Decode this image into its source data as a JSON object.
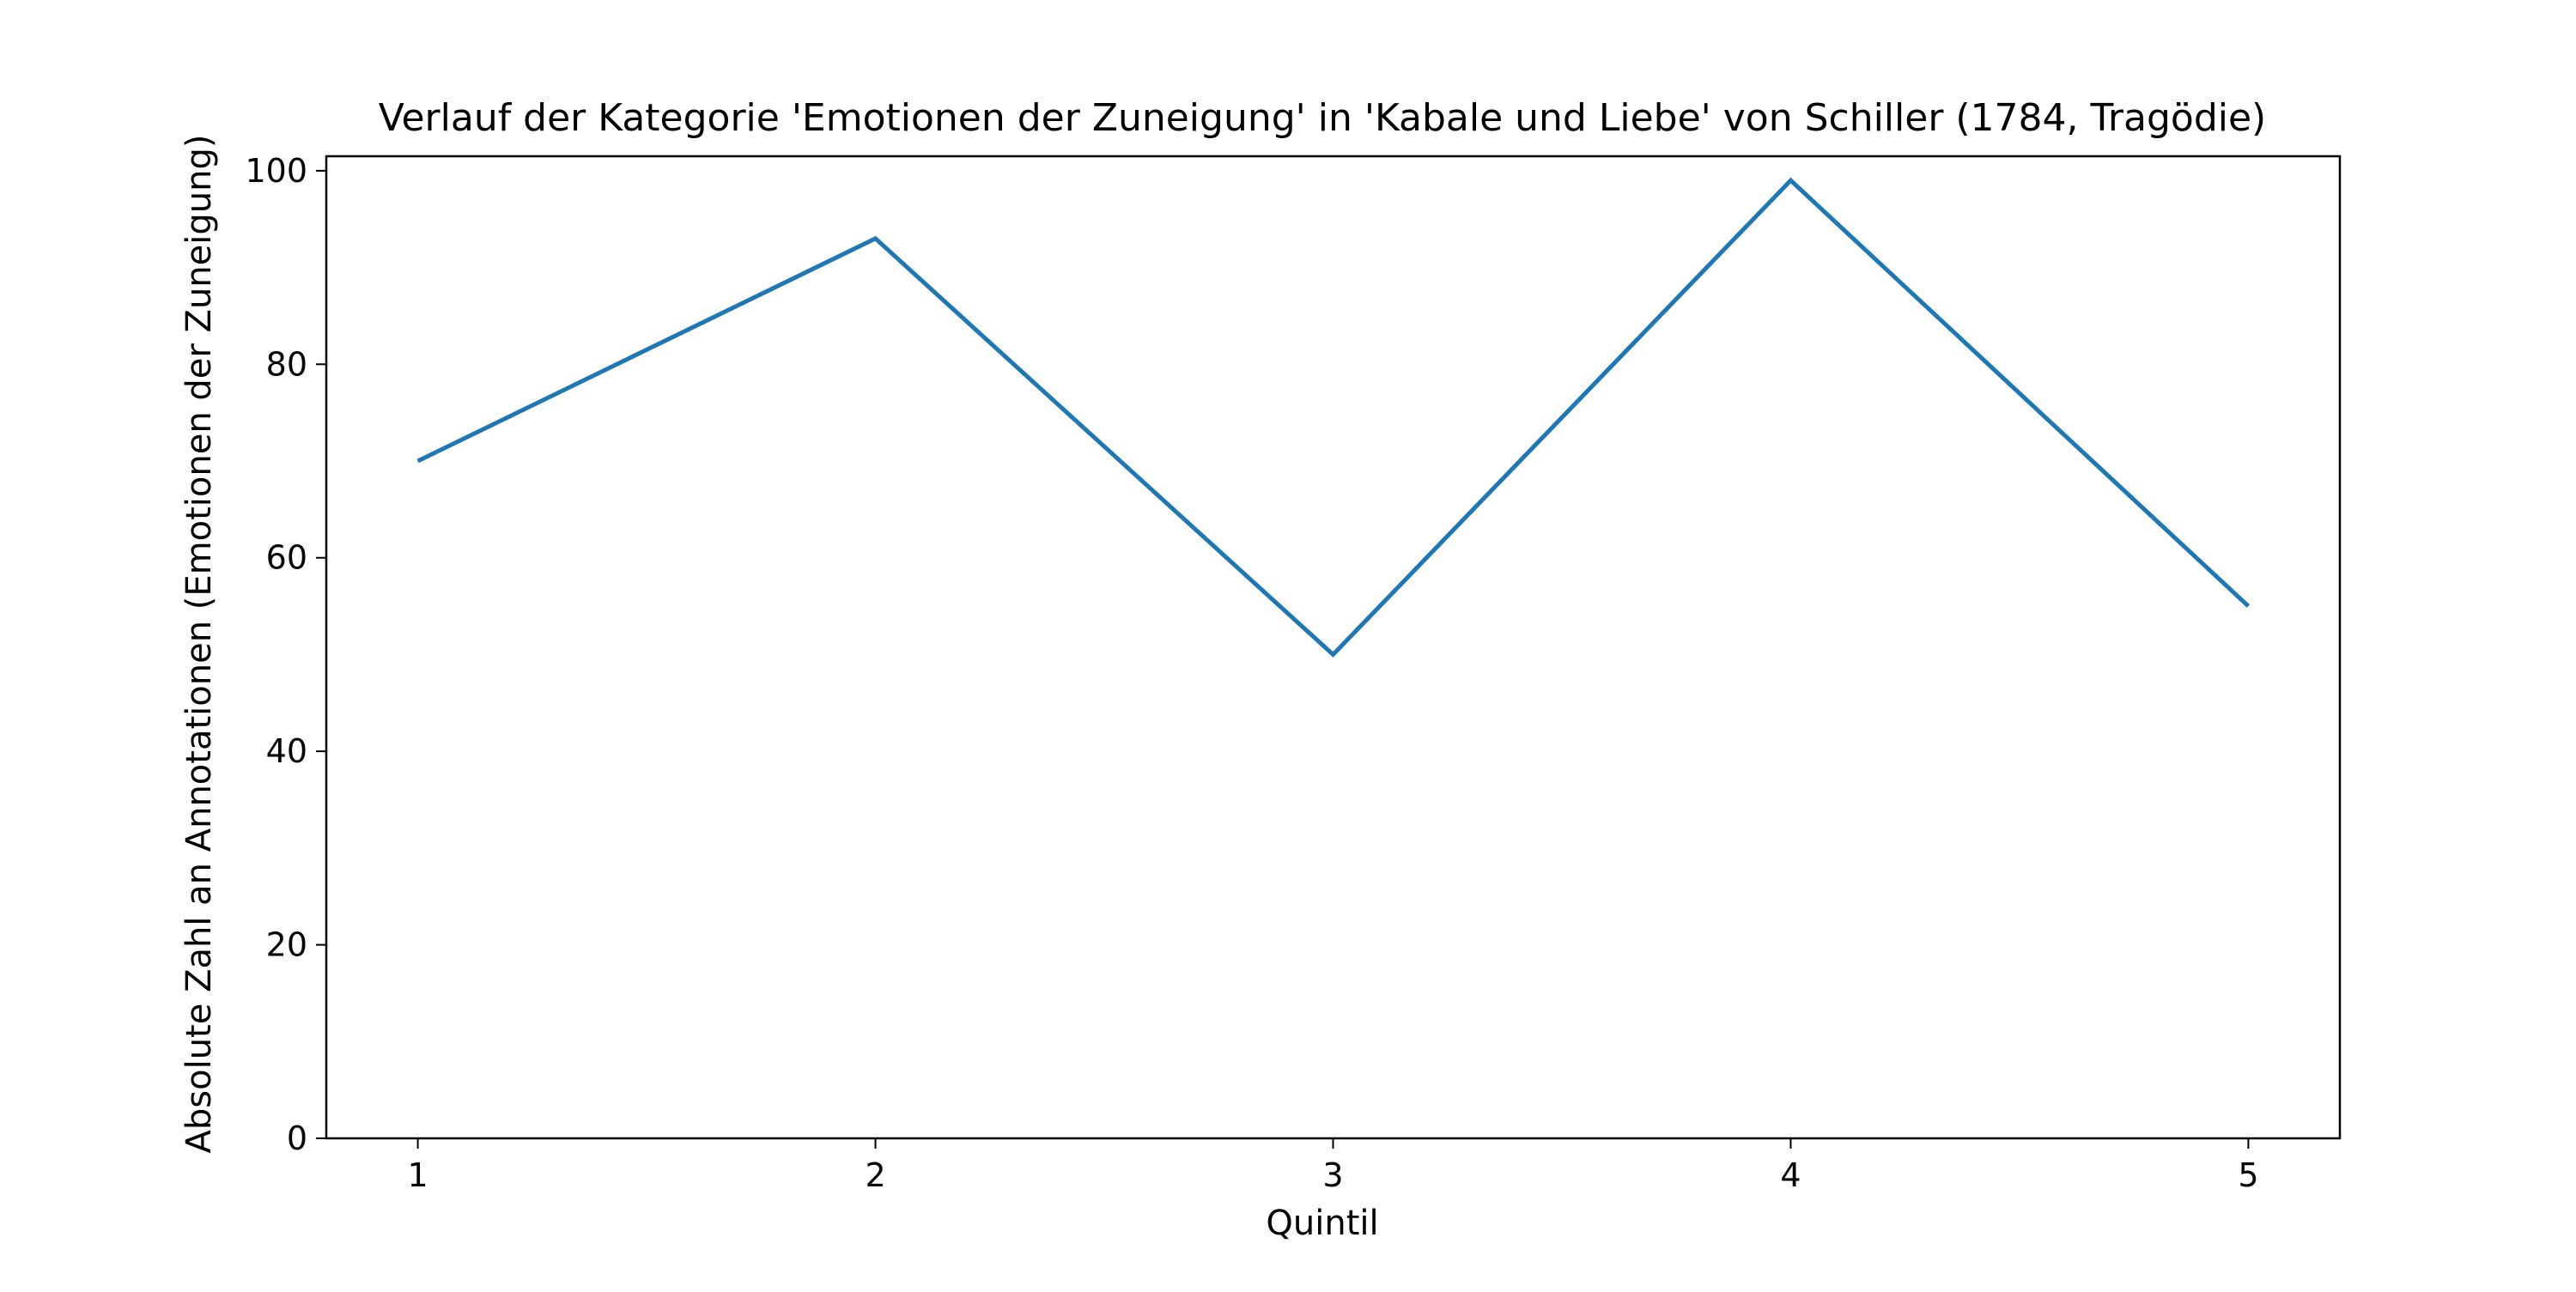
{
  "chart_data": {
    "type": "line",
    "title": "Verlauf der Kategorie 'Emotionen der Zuneigung' in 'Kabale und Liebe' von Schiller (1784, Tragödie)",
    "xlabel": "Quintil",
    "ylabel": "Absolute Zahl an Annotationen (Emotionen der Zuneigung)",
    "x": [
      1,
      2,
      3,
      4,
      5
    ],
    "x_ticks": [
      "1",
      "2",
      "3",
      "4",
      "5"
    ],
    "y_ticks": [
      "0",
      "20",
      "40",
      "60",
      "80",
      "100"
    ],
    "xlim": [
      0.8,
      5.2
    ],
    "ylim": [
      0,
      101.5
    ],
    "grid": false,
    "series": [
      {
        "values": [
          70,
          93,
          50,
          99,
          55
        ],
        "color": "#1f77b4"
      }
    ]
  }
}
